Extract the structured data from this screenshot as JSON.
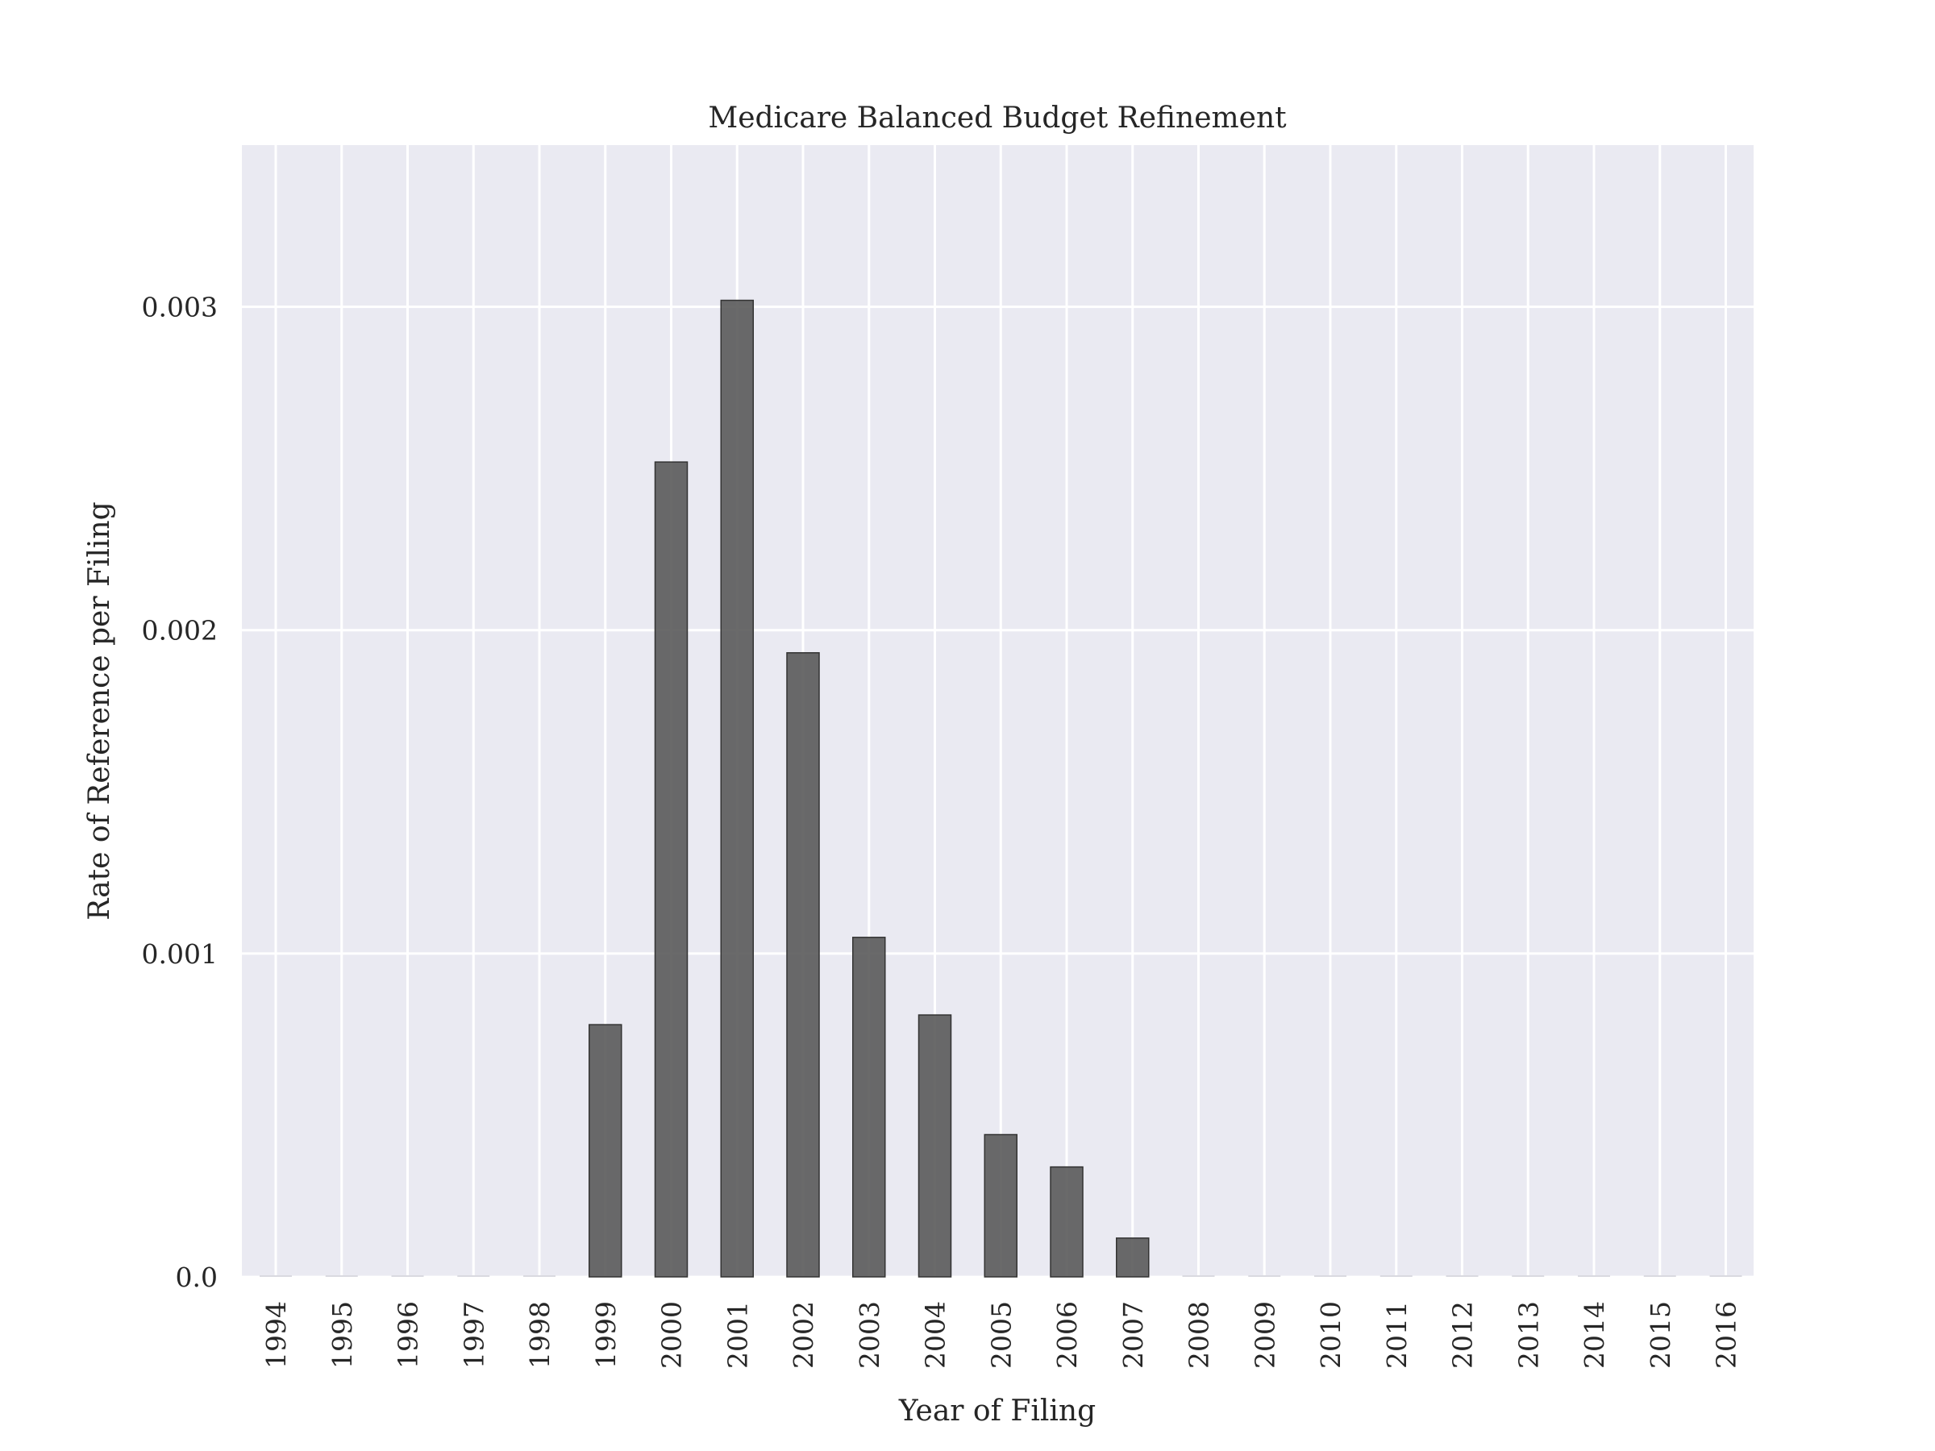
{
  "chart_data": {
    "type": "bar",
    "title": "Medicare Balanced Budget Refinement",
    "xlabel": "Year of Filing",
    "ylabel": "Rate of Reference per Filing",
    "categories": [
      "1994",
      "1995",
      "1996",
      "1997",
      "1998",
      "1999",
      "2000",
      "2001",
      "2002",
      "2003",
      "2004",
      "2005",
      "2006",
      "2007",
      "2008",
      "2009",
      "2010",
      "2011",
      "2012",
      "2013",
      "2014",
      "2015",
      "2016"
    ],
    "values": [
      0,
      0,
      0,
      0,
      0,
      0.00078,
      0.00252,
      0.00302,
      0.00193,
      0.00105,
      0.00081,
      0.00044,
      0.00034,
      0.00012,
      0,
      0,
      0,
      0,
      0,
      0,
      0,
      0,
      0
    ],
    "yticks": [
      0.0,
      0.001,
      0.002,
      0.003
    ],
    "ytick_labels": [
      "0.0",
      "0.001",
      "0.002",
      "0.003"
    ],
    "ylim": [
      0,
      0.0035
    ],
    "grid": true,
    "colors": {
      "plot_background": "#eaeaf2",
      "bar": "#555555",
      "grid": "#ffffff"
    }
  }
}
